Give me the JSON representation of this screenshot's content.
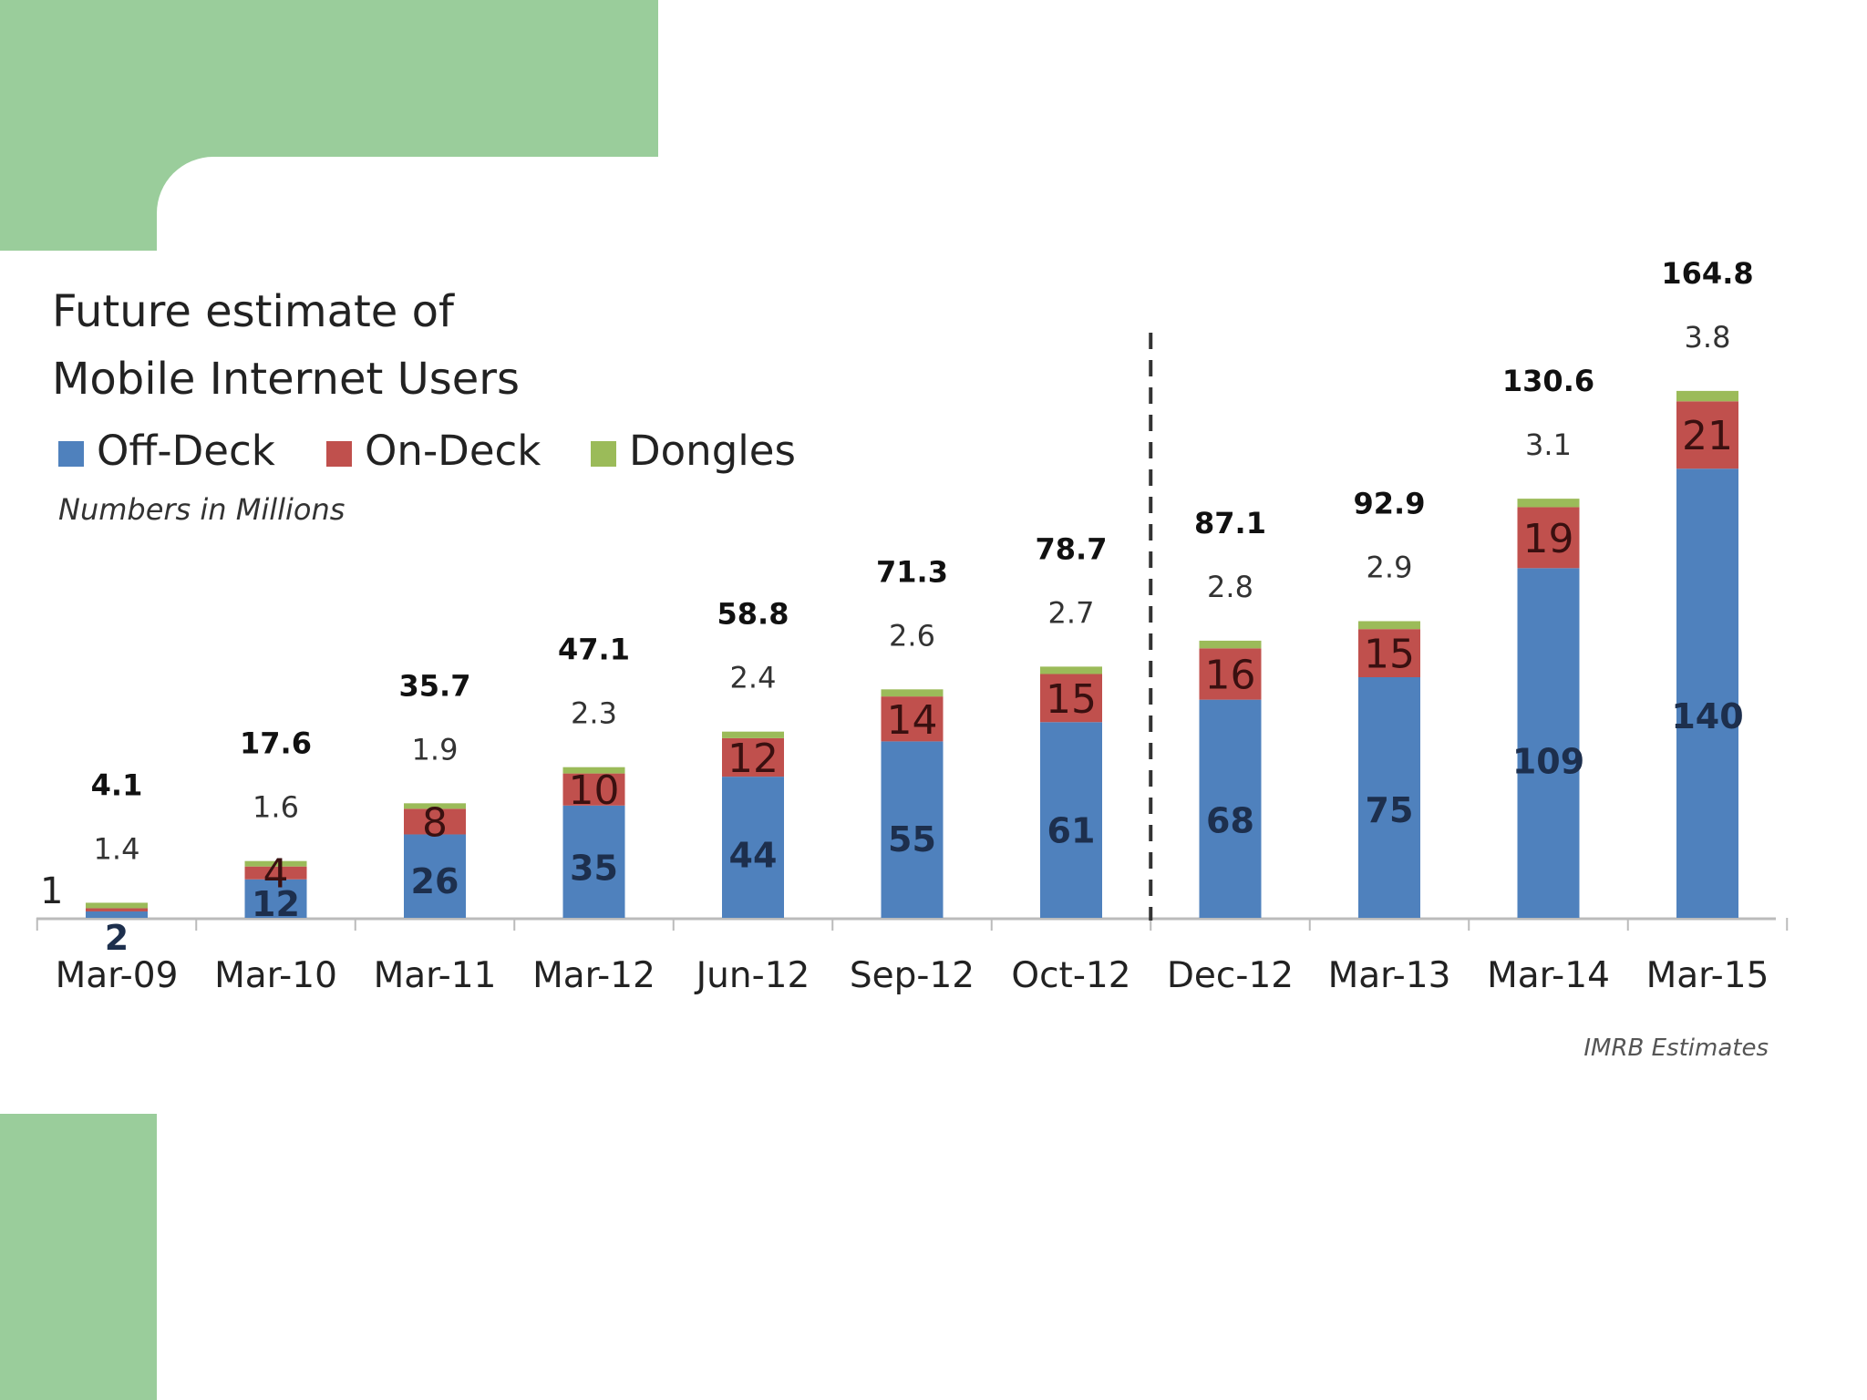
{
  "slide": {
    "accent_color": "#9acd9b"
  },
  "chart": {
    "title_line1": "Future estimate of",
    "title_line2": "Mobile Internet Users",
    "subtitle": "Numbers in Millions",
    "source": "IMRB Estimates",
    "small_label_first_bar": "1"
  },
  "chart_data": {
    "type": "bar",
    "stacked": true,
    "title": "Future estimate of Mobile Internet Users",
    "subtitle": "Numbers in Millions",
    "categories": [
      "Mar-09",
      "Mar-10",
      "Mar-11",
      "Mar-12",
      "Jun-12",
      "Sep-12",
      "Oct-12",
      "Dec-12",
      "Mar-13",
      "Mar-14",
      "Mar-15"
    ],
    "series": [
      {
        "name": "Off-Deck",
        "color": "#4f81bd",
        "values": [
          2,
          12,
          26,
          35,
          44,
          55,
          61,
          68,
          75,
          109,
          140
        ]
      },
      {
        "name": "On-Deck",
        "color": "#c0504d",
        "values": [
          1,
          4,
          8,
          10,
          12,
          14,
          15,
          16,
          15,
          19,
          21
        ]
      },
      {
        "name": "Dongles",
        "color": "#9bbb59",
        "values": [
          1.4,
          1.6,
          1.9,
          2.3,
          2.4,
          2.6,
          2.7,
          2.8,
          2.9,
          3.1,
          3.8
        ]
      }
    ],
    "totals": [
      4.1,
      17.6,
      35.7,
      47.1,
      58.8,
      71.3,
      78.7,
      87.1,
      92.9,
      130.6,
      164.8
    ],
    "legend_position": "top-left",
    "grid": false,
    "divider_after_category": "Oct-12",
    "ylim": [
      0,
      170
    ]
  }
}
